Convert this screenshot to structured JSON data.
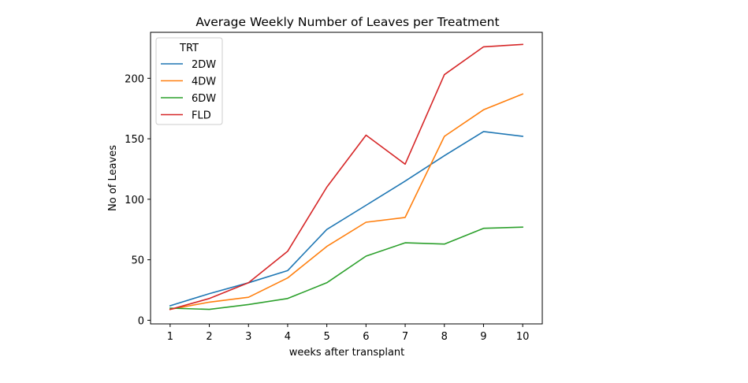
{
  "chart_data": {
    "type": "line",
    "title": "Average Weekly Number of Leaves per Treatment",
    "xlabel": "weeks after transplant",
    "ylabel": "No of Leaves",
    "x": [
      1,
      2,
      3,
      4,
      5,
      6,
      7,
      8,
      9,
      10
    ],
    "xlim": [
      0.5,
      10.5
    ],
    "ylim": [
      -3,
      238
    ],
    "yticks": [
      0,
      50,
      100,
      150,
      200
    ],
    "grid": false,
    "legend": {
      "title": "TRT",
      "placement": "upper left"
    },
    "series": [
      {
        "name": "2DW",
        "color": "#1f77b4",
        "values": [
          12,
          22,
          31,
          41,
          75,
          95,
          115,
          136,
          156,
          152
        ]
      },
      {
        "name": "4DW",
        "color": "#ff7f0e",
        "values": [
          9,
          15,
          19,
          35,
          61,
          81,
          85,
          152,
          174,
          187
        ]
      },
      {
        "name": "6DW",
        "color": "#2ca02c",
        "values": [
          10,
          9,
          13,
          18,
          31,
          53,
          64,
          63,
          76,
          77
        ]
      },
      {
        "name": "FLD",
        "color": "#d62728",
        "values": [
          9,
          18,
          31,
          57,
          110,
          153,
          129,
          203,
          226,
          228
        ]
      }
    ]
  }
}
